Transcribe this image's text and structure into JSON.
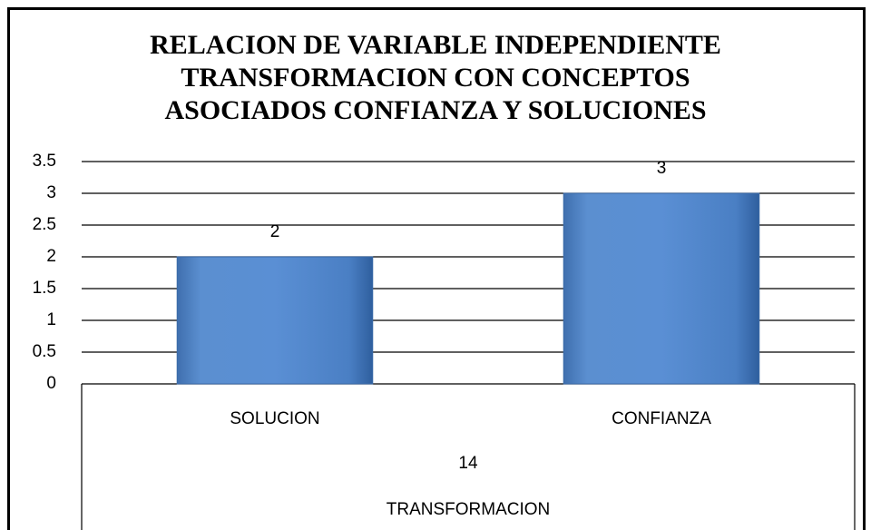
{
  "chart_data": {
    "type": "bar",
    "title": [
      "RELACION DE VARIABLE INDEPENDIENTE",
      "TRANSFORMACION CON CONCEPTOS",
      "ASOCIADOS CONFIANZA Y SOLUCIONES"
    ],
    "categories": [
      "SOLUCION",
      "CONFIANZA"
    ],
    "category_groups": [
      "14",
      "TRANSFORMACION"
    ],
    "values": [
      2,
      3
    ],
    "color": "#4f81bd",
    "ylim": [
      0,
      3.5
    ],
    "yticks": [
      0,
      0.5,
      1,
      1.5,
      2,
      2.5,
      3,
      3.5
    ],
    "grid": true,
    "data_labels": true
  }
}
